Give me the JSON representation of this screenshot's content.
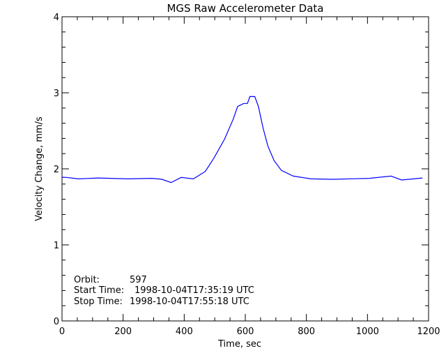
{
  "chart_data": {
    "type": "line",
    "title": "MGS Raw Accelerometer Data",
    "xlabel": "Time, sec",
    "ylabel": "Velocity Change, mm/s",
    "xlim": [
      0,
      1200
    ],
    "ylim": [
      0,
      4
    ],
    "xticks": [
      "0",
      "200",
      "400",
      "600",
      "800",
      "1000",
      "1200"
    ],
    "yticks": [
      "0",
      "1",
      "2",
      "3",
      "4"
    ],
    "grid": false,
    "line_color": "#0000ff",
    "series": [
      {
        "x": [
          0,
          15,
          54,
          118,
          216,
          295,
          327,
          357,
          390,
          430,
          469,
          497,
          532,
          560,
          575,
          595,
          607,
          615,
          631,
          643,
          658,
          674,
          694,
          718,
          757,
          816,
          887,
          1006,
          1077,
          1112,
          1180
        ],
        "y": [
          1.89,
          1.887,
          1.868,
          1.88,
          1.868,
          1.875,
          1.862,
          1.82,
          1.887,
          1.868,
          1.966,
          2.14,
          2.39,
          2.65,
          2.82,
          2.86,
          2.86,
          2.95,
          2.95,
          2.82,
          2.54,
          2.3,
          2.11,
          1.98,
          1.905,
          1.868,
          1.862,
          1.875,
          1.905,
          1.853,
          1.88
        ]
      }
    ],
    "annotations": [
      {
        "label": "Orbit:",
        "value": "597"
      },
      {
        "label": "Start Time:",
        "value": "1998-10-04T17:35:19 UTC"
      },
      {
        "label": "Stop Time:",
        "value": "1998-10-04T17:55:18 UTC"
      }
    ]
  }
}
